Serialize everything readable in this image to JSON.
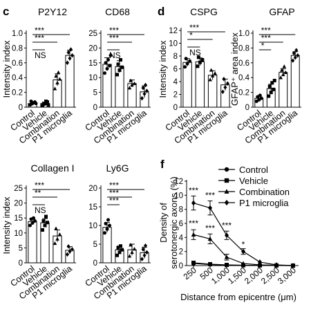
{
  "panels": {
    "c": "c",
    "d": "d",
    "f": "f"
  },
  "chart_data": [
    {
      "type": "bar",
      "title": "P2Y12",
      "ylabel": "Intensity index",
      "categories": [
        "Control",
        "Vehicle",
        "Combination",
        "P1 microglia"
      ],
      "values": [
        0.05,
        0.05,
        0.37,
        0.7
      ],
      "errors": [
        0.02,
        0.02,
        0.08,
        0.07
      ],
      "yticks": [
        "0",
        "0.2",
        "0.4",
        "0.6",
        "0.8",
        "1.0"
      ],
      "ylim": [
        0,
        1.0
      ],
      "points": [
        [
          0.03,
          0.05,
          0.07,
          0.04,
          0.06,
          0.05,
          0.08
        ],
        [
          0.02,
          0.05,
          0.07,
          0.04,
          0.08,
          0.03
        ],
        [
          0.25,
          0.33,
          0.38,
          0.42,
          0.47
        ],
        [
          0.6,
          0.66,
          0.7,
          0.74,
          0.78
        ]
      ],
      "markers": [
        "circle",
        "square",
        "triangle",
        "diamond"
      ],
      "sig": [
        {
          "from": 0,
          "to": 1,
          "label": "NS"
        },
        {
          "from": 0,
          "to": 2,
          "label": "***"
        },
        {
          "from": 0,
          "to": 3,
          "label": "***"
        }
      ]
    },
    {
      "type": "bar",
      "title": "CD68",
      "ylabel": "",
      "categories": [
        "Control",
        "Vehicle",
        "Combination",
        "P1 microglia"
      ],
      "values": [
        14.5,
        13.7,
        8.0,
        5.2
      ],
      "errors": [
        2.2,
        2.0,
        1.2,
        2.0
      ],
      "yticks": [
        "0",
        "5",
        "10",
        "15",
        "20",
        "25"
      ],
      "ylim": [
        0,
        25
      ],
      "points": [
        [
          11.5,
          13,
          14,
          15,
          16,
          17.5
        ],
        [
          11,
          12.5,
          13.5,
          14.5,
          16
        ],
        [
          6.5,
          7.5,
          8,
          9
        ],
        [
          3,
          4.5,
          5.5,
          6.5,
          7.5
        ]
      ],
      "markers": [
        "circle",
        "square",
        "triangle",
        "diamond"
      ],
      "sig": [
        {
          "from": 0,
          "to": 1,
          "label": "NS"
        },
        {
          "from": 0,
          "to": 2,
          "label": "***"
        },
        {
          "from": 0,
          "to": 3,
          "label": "***"
        }
      ]
    },
    {
      "type": "bar",
      "title": "CSPG",
      "ylabel": "Intensity index",
      "categories": [
        "Control",
        "Vehicle",
        "Combination",
        "P1 microglia"
      ],
      "values": [
        7.0,
        7.1,
        5.0,
        3.5
      ],
      "errors": [
        0.6,
        0.6,
        0.7,
        0.9
      ],
      "yticks": [
        "0",
        "2",
        "4",
        "6",
        "8",
        "10",
        "12"
      ],
      "ylim": [
        0,
        12
      ],
      "points": [
        [
          6.3,
          6.8,
          7.2,
          7.6
        ],
        [
          6.4,
          7,
          7.4,
          7.8
        ],
        [
          4.3,
          4.9,
          5.3,
          5.8
        ],
        [
          2.4,
          3.1,
          3.7,
          4.4
        ]
      ],
      "markers": [
        "circle",
        "square",
        "triangle",
        "diamond"
      ],
      "sig": [
        {
          "from": 0,
          "to": 1,
          "label": "NS"
        },
        {
          "from": 0,
          "to": 2,
          "label": "*"
        },
        {
          "from": 0,
          "to": 3,
          "label": "***"
        }
      ]
    },
    {
      "type": "bar",
      "title": "GFAP",
      "ylabel": "GFAP⁺ area index",
      "categories": [
        "Control",
        "Vehicle",
        "Combination",
        "P1 microglia"
      ],
      "values": [
        0.12,
        0.25,
        0.47,
        0.7
      ],
      "errors": [
        0.03,
        0.06,
        0.05,
        0.05
      ],
      "yticks": [
        "0",
        "0.2",
        "0.4",
        "0.6",
        "0.8",
        "1.0"
      ],
      "ylim": [
        0,
        1.0
      ],
      "points": [
        [
          0.08,
          0.1,
          0.12,
          0.14,
          0.16
        ],
        [
          0.15,
          0.2,
          0.24,
          0.28,
          0.33,
          0.36
        ],
        [
          0.4,
          0.44,
          0.47,
          0.5,
          0.55
        ],
        [
          0.63,
          0.67,
          0.7,
          0.73,
          0.77
        ]
      ],
      "markers": [
        "circle",
        "square",
        "triangle",
        "diamond"
      ],
      "sig": [
        {
          "from": 0,
          "to": 1,
          "label": "*"
        },
        {
          "from": 0,
          "to": 2,
          "label": "***"
        },
        {
          "from": 0,
          "to": 3,
          "label": "***"
        }
      ]
    },
    {
      "type": "bar",
      "title": "Collagen I",
      "ylabel": "Intensity index",
      "categories": [
        "Control",
        "Vehicle",
        "Combination",
        "P1 microglia"
      ],
      "values": [
        13.8,
        13.4,
        9.0,
        4.2
      ],
      "errors": [
        1.0,
        1.4,
        2.0,
        1.2
      ],
      "yticks": [
        "0",
        "5",
        "10",
        "15",
        "20",
        "25"
      ],
      "ylim": [
        0,
        25
      ],
      "points": [
        [
          12.5,
          13.3,
          14,
          14.6,
          15
        ],
        [
          11,
          12.5,
          13.5,
          14,
          15.5
        ],
        [
          6.5,
          8,
          9.5,
          11.5
        ],
        [
          2.8,
          3.8,
          4.5,
          5.5
        ]
      ],
      "markers": [
        "circle",
        "square",
        "triangle",
        "diamond"
      ],
      "sig": [
        {
          "from": 0,
          "to": 1,
          "label": "NS"
        },
        {
          "from": 0,
          "to": 2,
          "label": "**"
        },
        {
          "from": 0,
          "to": 3,
          "label": "***"
        }
      ]
    },
    {
      "type": "bar",
      "title": "Ly6G",
      "ylabel": "",
      "categories": [
        "Control",
        "Vehicle",
        "Combination",
        "P1 microglia"
      ],
      "values": [
        9.5,
        3.5,
        3.5,
        2.7
      ],
      "errors": [
        1.3,
        1.0,
        1.5,
        1.5
      ],
      "yticks": [
        "0",
        "5",
        "10",
        "15",
        "20"
      ],
      "ylim": [
        0,
        20
      ],
      "points": [
        [
          8,
          9,
          10,
          10.5,
          11.5
        ],
        [
          2,
          2.8,
          3.5,
          4,
          4.5
        ],
        [
          1.8,
          2.8,
          3.7,
          4.8
        ],
        [
          1,
          2,
          2.8,
          3.6,
          4.6
        ]
      ],
      "markers": [
        "circle",
        "square",
        "triangle",
        "diamond"
      ],
      "sig": [
        {
          "from": 0,
          "to": 1,
          "label": "***"
        },
        {
          "from": 0,
          "to": 2,
          "label": "***"
        },
        {
          "from": 0,
          "to": 3,
          "label": "***"
        }
      ]
    },
    {
      "type": "line",
      "title": "",
      "xlabel": "Distance from epicentre (μm)",
      "ylabel": "Density of serotonergic axons (%)",
      "x": [
        "250",
        "500",
        "1,000",
        "1,500",
        "2,000",
        "2,500",
        "3,000"
      ],
      "yticks": [
        "0",
        "2",
        "4",
        "6",
        "8",
        "10",
        "12"
      ],
      "ylim": [
        0,
        12
      ],
      "series": [
        {
          "name": "Control",
          "marker": "circle",
          "values": [
            0.3,
            0.15,
            0.05,
            0.03,
            0.02,
            0.01,
            0.0
          ]
        },
        {
          "name": "Vehicle",
          "marker": "square",
          "values": [
            0.4,
            0.2,
            0.1,
            0.05,
            0.03,
            0.02,
            0.0
          ]
        },
        {
          "name": "Combination",
          "marker": "triangle",
          "values": [
            4.4,
            3.8,
            1.2,
            0.3,
            0.1,
            0.05,
            0.0
          ]
        },
        {
          "name": "P1 microglia",
          "marker": "diamond",
          "values": [
            8.9,
            8.2,
            4.3,
            2.0,
            0.5,
            0.1,
            0.0
          ]
        }
      ],
      "errors": [
        1.0,
        1.0,
        0.6,
        0.4,
        0.1,
        0.05,
        0.0
      ],
      "annotations": [
        {
          "x": 0,
          "y": 10.3,
          "label": "***"
        },
        {
          "x": 1,
          "y": 9.6,
          "label": "***"
        },
        {
          "x": 0,
          "y": 5.6,
          "label": "***"
        },
        {
          "x": 1,
          "y": 4.9,
          "label": "***"
        },
        {
          "x": 2,
          "y": 5.3,
          "label": "***"
        },
        {
          "x": 3,
          "y": 2.6,
          "label": "*"
        }
      ]
    }
  ]
}
